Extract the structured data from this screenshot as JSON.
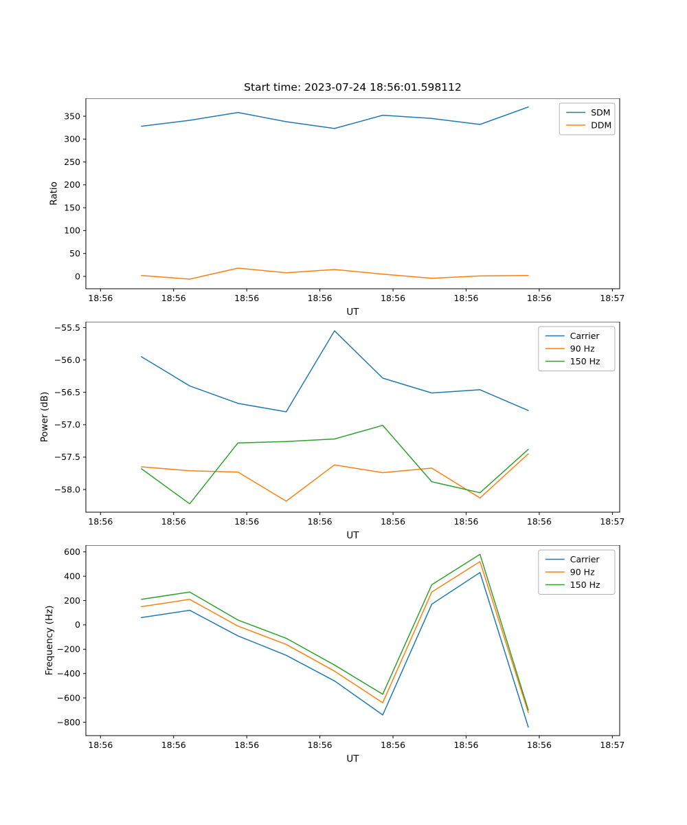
{
  "figure": {
    "background": "#ffffff"
  },
  "chart_data": [
    {
      "type": "line",
      "title": "Start time: 2023-07-24 18:56:01.598112",
      "xlabel": "UT",
      "ylabel": "Ratio",
      "xlim": [
        -0.2,
        7.1
      ],
      "ylim": [
        -27,
        389
      ],
      "grid": false,
      "legend_position": "upper-right",
      "x": [
        0.56,
        1.22,
        1.88,
        2.54,
        3.2,
        3.86,
        4.53,
        5.19,
        5.85
      ],
      "xticks": {
        "positions": [
          0,
          1,
          2,
          3,
          4,
          5,
          6,
          7
        ],
        "labels": [
          "18:56",
          "18:56",
          "18:56",
          "18:56",
          "18:56",
          "18:56",
          "18:56",
          "18:57"
        ]
      },
      "yticks": {
        "positions": [
          0,
          50,
          100,
          150,
          200,
          250,
          300,
          350
        ],
        "labels": [
          "0",
          "50",
          "100",
          "150",
          "200",
          "250",
          "300",
          "350"
        ]
      },
      "series": [
        {
          "name": "SDM",
          "color": "#1f77b4",
          "values": [
            328,
            341,
            358,
            338,
            323,
            352,
            345,
            332,
            370
          ]
        },
        {
          "name": "DDM",
          "color": "#ff7f0e",
          "values": [
            2,
            -6,
            18,
            8,
            15,
            5,
            -4,
            1,
            2
          ]
        }
      ]
    },
    {
      "type": "line",
      "title": "",
      "xlabel": "UT",
      "ylabel": "Power (dB)",
      "xlim": [
        -0.2,
        7.1
      ],
      "ylim": [
        -58.35,
        -55.41
      ],
      "grid": false,
      "legend_position": "upper-right",
      "x": [
        0.56,
        1.22,
        1.88,
        2.54,
        3.2,
        3.86,
        4.53,
        5.19,
        5.85
      ],
      "xticks": {
        "positions": [
          0,
          1,
          2,
          3,
          4,
          5,
          6,
          7
        ],
        "labels": [
          "18:56",
          "18:56",
          "18:56",
          "18:56",
          "18:56",
          "18:56",
          "18:56",
          "18:57"
        ]
      },
      "yticks": {
        "positions": [
          -55.5,
          -56.0,
          -56.5,
          -57.0,
          -57.5,
          -58.0
        ],
        "labels": [
          "−55.5",
          "−56.0",
          "−56.5",
          "−57.0",
          "−57.5",
          "−58.0"
        ]
      },
      "series": [
        {
          "name": "Carrier",
          "color": "#1f77b4",
          "values": [
            -55.95,
            -56.4,
            -56.67,
            -56.8,
            -55.55,
            -56.28,
            -56.51,
            -56.46,
            -56.78
          ]
        },
        {
          "name": "90 Hz",
          "color": "#ff7f0e",
          "values": [
            -57.65,
            -57.71,
            -57.73,
            -58.18,
            -57.62,
            -57.74,
            -57.67,
            -58.13,
            -57.45
          ]
        },
        {
          "name": "150 Hz",
          "color": "#2ca02c",
          "values": [
            -57.68,
            -58.22,
            -57.28,
            -57.26,
            -57.22,
            -57.01,
            -57.88,
            -58.05,
            -57.38
          ]
        }
      ]
    },
    {
      "type": "line",
      "title": "",
      "xlabel": "UT",
      "ylabel": "Frequency (Hz)",
      "xlim": [
        -0.2,
        7.1
      ],
      "ylim": [
        -910,
        655
      ],
      "grid": false,
      "legend_position": "upper-right",
      "x": [
        0.56,
        1.22,
        1.88,
        2.54,
        3.2,
        3.86,
        4.53,
        5.19,
        5.85
      ],
      "xticks": {
        "positions": [
          0,
          1,
          2,
          3,
          4,
          5,
          6,
          7
        ],
        "labels": [
          "18:56",
          "18:56",
          "18:56",
          "18:56",
          "18:56",
          "18:56",
          "18:56",
          "18:57"
        ]
      },
      "yticks": {
        "positions": [
          600,
          400,
          200,
          0,
          -200,
          -400,
          -600,
          -800
        ],
        "labels": [
          "600",
          "400",
          "200",
          "0",
          "−200",
          "−400",
          "−600",
          "−800"
        ]
      },
      "series": [
        {
          "name": "Carrier",
          "color": "#1f77b4",
          "values": [
            60,
            120,
            -90,
            -250,
            -460,
            -740,
            170,
            430,
            -840
          ]
        },
        {
          "name": "90 Hz",
          "color": "#ff7f0e",
          "values": [
            150,
            210,
            -10,
            -160,
            -380,
            -640,
            270,
            520,
            -720
          ]
        },
        {
          "name": "150 Hz",
          "color": "#2ca02c",
          "values": [
            210,
            270,
            40,
            -110,
            -330,
            -570,
            330,
            580,
            -700
          ]
        }
      ]
    }
  ]
}
